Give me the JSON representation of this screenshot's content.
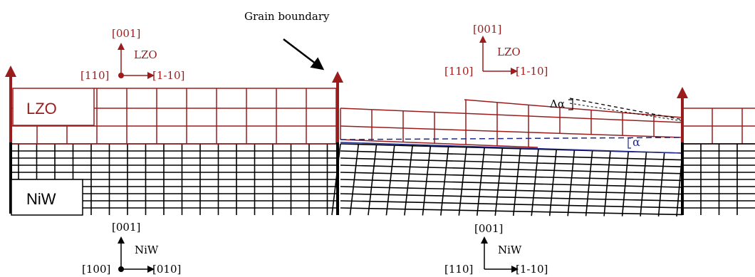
{
  "colors": {
    "lzo": "#9b1c1c",
    "niw": "#000000",
    "dashed_blue": "#1f2a8c",
    "background": "#ffffff"
  },
  "annotations": {
    "grain_boundary": "Grain boundary",
    "delta_alpha": "Δα",
    "alpha": "α"
  },
  "layers": {
    "lzo_label": "LZO",
    "niw_label": "NiW"
  },
  "axes": {
    "lzo_left": {
      "up": "[001]",
      "right": "[1-10]",
      "origin": "[110]",
      "material": "LZO"
    },
    "lzo_right": {
      "up": "[001]",
      "right": "[1-10]",
      "origin": "[110]",
      "material": "LZO"
    },
    "niw_left": {
      "up": "[001]",
      "right": "[010]",
      "origin": "[100]",
      "material": "NiW"
    },
    "niw_right": {
      "up": "[001]",
      "right": "[1-10]",
      "origin": "[110]",
      "material": "NiW"
    }
  }
}
